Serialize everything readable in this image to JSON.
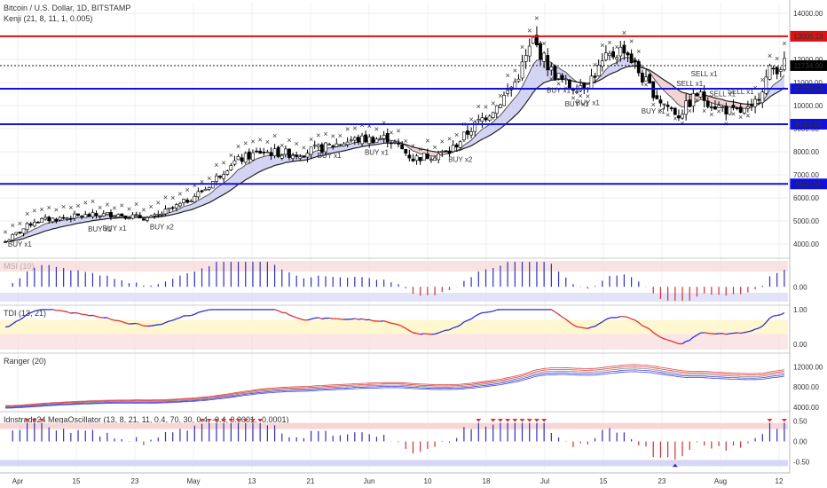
{
  "header": {
    "title": "Bitcoin / U.S. Dollar, 1D, BITSTAMP",
    "indicator": "Kenji (21, 8, 11, 1, 0.005)"
  },
  "colors": {
    "price_line": "#e01010",
    "support_line": "#1010e0",
    "candle_up": "#ffffff",
    "candle_down": "#000000",
    "cloud_up": "#c8c8f0",
    "cloud_down": "#f0c8c8",
    "buy_marker": "#4040d0",
    "sell_marker": "#e04040"
  },
  "chart_data": [
    {
      "panel": "price",
      "type": "candlestick",
      "ylim": [
        3500,
        14500
      ],
      "y_ticks": [
        "4000.00",
        "5000.00",
        "6000.00",
        "7000.00",
        "8000.00",
        "9000.00",
        "10000.00",
        "11000.00",
        "12000.00",
        "13000.00",
        "14000.00"
      ],
      "x_ticks": [
        "Apr",
        "15",
        "23",
        "May",
        "13",
        "21",
        "Jun",
        "10",
        "18",
        "Jul",
        "15",
        "23",
        "Aug",
        "12"
      ],
      "horizontal_levels": [
        {
          "value": 13005.19,
          "label": "13005.19",
          "color": "red"
        },
        {
          "value": 11734.0,
          "label": "11734.00",
          "color": "black"
        },
        {
          "value": 10728.53,
          "label": "10728.53",
          "color": "blue"
        },
        {
          "value": 9193.82,
          "label": "9193.82",
          "color": "blue"
        },
        {
          "value": 6605.66,
          "label": "6605.66",
          "color": "blue"
        }
      ],
      "signals": [
        {
          "i": 4,
          "text": "BUY x1",
          "side": "buy"
        },
        {
          "i": 26,
          "text": "BUY x1",
          "side": "buy"
        },
        {
          "i": 30,
          "text": "BUY x1",
          "side": "buy"
        },
        {
          "i": 43,
          "text": "BUY x2",
          "side": "buy"
        },
        {
          "i": 102,
          "text": "BUY x1",
          "side": "buy"
        },
        {
          "i": 89,
          "text": "BUY x1",
          "side": "buy"
        },
        {
          "i": 125,
          "text": "BUY x2",
          "side": "buy"
        },
        {
          "i": 152,
          "text": "BUY x1",
          "side": "buy"
        },
        {
          "i": 157,
          "text": "BUY x1",
          "side": "buy"
        },
        {
          "i": 160,
          "text": "BUY x1",
          "side": "buy"
        },
        {
          "i": 178,
          "text": "BUY x1",
          "side": "buy"
        },
        {
          "i": 188,
          "text": "SELL x1",
          "side": "sell"
        },
        {
          "i": 192,
          "text": "SELL x1",
          "side": "sell"
        },
        {
          "i": 197,
          "text": "SELL x1",
          "side": "sell"
        },
        {
          "i": 202,
          "text": "SELL x1",
          "side": "sell"
        }
      ]
    },
    {
      "panel": "MSI (10)",
      "type": "bar",
      "ylim": [
        -0.6,
        1.0
      ],
      "y_ticks": [
        "0.00"
      ]
    },
    {
      "panel": "TDI (13, 21)",
      "type": "line",
      "ylim": [
        -0.2,
        1.1
      ],
      "y_ticks": [
        "1.00",
        "0.00"
      ]
    },
    {
      "panel": "Ranger (20)",
      "type": "line",
      "ylim": [
        3500,
        14500
      ],
      "y_ticks": [
        "12000.00",
        "8000.00",
        "4000.00"
      ]
    },
    {
      "panel": "Idnstrade24 MegaOscillator (13, 8, 21, 11, 0.4, 70, 30, 0.4, -0.4, 0.0001, -0.0001)",
      "type": "bar",
      "ylim": [
        -0.7,
        0.7
      ],
      "y_ticks": [
        "0.50",
        "0.00",
        "-0.50"
      ]
    }
  ]
}
